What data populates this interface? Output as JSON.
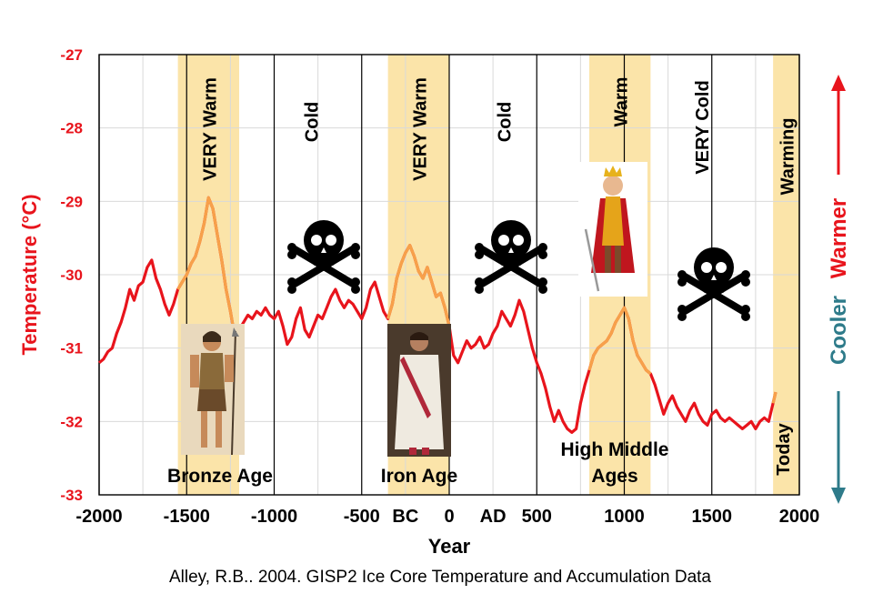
{
  "chart_data": {
    "type": "line",
    "ylabel": "Temperature (°C)",
    "xlabel": "Year",
    "source": "Alley, R.B.. 2004. GISP2 Ice Core Temperature and Accumulation Data",
    "xlim": [
      -2000,
      2000
    ],
    "ylim": [
      -33,
      -27
    ],
    "grid": true,
    "y_ticks": [
      "-27",
      "-28",
      "-29",
      "-30",
      "-31",
      "-32",
      "-33"
    ],
    "x_ticks": [
      {
        "value": -2000,
        "label": "-2000"
      },
      {
        "value": -1500,
        "label": "-1500"
      },
      {
        "value": -1000,
        "label": "-1000"
      },
      {
        "value": -500,
        "label": "-500"
      },
      {
        "value": -250,
        "label": "BC"
      },
      {
        "value": 0,
        "label": "0"
      },
      {
        "value": 250,
        "label": "AD"
      },
      {
        "value": 500,
        "label": "500"
      },
      {
        "value": 1000,
        "label": "1000"
      },
      {
        "value": 1500,
        "label": "1500"
      },
      {
        "value": 2000,
        "label": "2000"
      }
    ],
    "right_axis": {
      "cooler_label": "Cooler",
      "warmer_label": "Warmer",
      "cooler_color": "#2e7b8a",
      "warmer_color": "#e8141c"
    },
    "bands": [
      {
        "start": -1550,
        "end": -1200,
        "label": "VERY Warm"
      },
      {
        "start": -350,
        "end": 0,
        "label": "VERY Warm"
      },
      {
        "start": 800,
        "end": 1150,
        "label": "Warm"
      },
      {
        "start": 1850,
        "end": 2000,
        "label": "Warming"
      }
    ],
    "period_labels": [
      {
        "x": -750,
        "label": "Cold"
      },
      {
        "x": 350,
        "label": "Cold"
      },
      {
        "x": 1450,
        "label": "VERY Cold"
      },
      {
        "x": 1900,
        "label": "Today"
      }
    ],
    "era_labels": [
      "Bronze Age",
      "Iron Age",
      "High Middle",
      "Ages"
    ],
    "series": [
      {
        "color": "#e8141c",
        "highlight_color": "#f7a14a",
        "x": [
          -2000,
          -1975,
          -1950,
          -1925,
          -1900,
          -1875,
          -1850,
          -1825,
          -1800,
          -1775,
          -1750,
          -1725,
          -1700,
          -1675,
          -1650,
          -1625,
          -1600,
          -1575,
          -1550,
          -1525,
          -1500,
          -1475,
          -1450,
          -1425,
          -1400,
          -1375,
          -1350,
          -1325,
          -1300,
          -1275,
          -1250,
          -1225,
          -1200,
          -1175,
          -1150,
          -1125,
          -1100,
          -1075,
          -1050,
          -1025,
          -1000,
          -975,
          -950,
          -925,
          -900,
          -875,
          -850,
          -825,
          -800,
          -775,
          -750,
          -725,
          -700,
          -675,
          -650,
          -625,
          -600,
          -575,
          -550,
          -525,
          -500,
          -475,
          -450,
          -425,
          -400,
          -375,
          -350,
          -325,
          -300,
          -275,
          -250,
          -225,
          -200,
          -175,
          -150,
          -125,
          -100,
          -75,
          -50,
          -25,
          0,
          25,
          50,
          75,
          100,
          125,
          150,
          175,
          200,
          225,
          250,
          275,
          300,
          325,
          350,
          375,
          400,
          425,
          450,
          475,
          500,
          525,
          550,
          575,
          600,
          625,
          650,
          675,
          700,
          725,
          750,
          775,
          800,
          825,
          850,
          875,
          900,
          925,
          950,
          975,
          1000,
          1025,
          1050,
          1075,
          1100,
          1125,
          1150,
          1175,
          1200,
          1225,
          1250,
          1275,
          1300,
          1325,
          1350,
          1375,
          1400,
          1425,
          1450,
          1475,
          1500,
          1525,
          1550,
          1575,
          1600,
          1625,
          1650,
          1675,
          1700,
          1725,
          1750,
          1775,
          1800,
          1825,
          1850,
          1865
        ],
        "y": [
          -31.2,
          -31.15,
          -31.05,
          -31.0,
          -30.8,
          -30.65,
          -30.45,
          -30.2,
          -30.35,
          -30.15,
          -30.1,
          -29.9,
          -29.8,
          -30.05,
          -30.2,
          -30.4,
          -30.55,
          -30.4,
          -30.2,
          -30.1,
          -30.0,
          -29.85,
          -29.75,
          -29.55,
          -29.3,
          -28.95,
          -29.1,
          -29.45,
          -29.8,
          -30.2,
          -30.5,
          -30.85,
          -30.75,
          -30.65,
          -30.55,
          -30.6,
          -30.5,
          -30.55,
          -30.45,
          -30.55,
          -30.6,
          -30.5,
          -30.7,
          -30.95,
          -30.85,
          -30.6,
          -30.45,
          -30.75,
          -30.85,
          -30.7,
          -30.55,
          -30.6,
          -30.45,
          -30.3,
          -30.2,
          -30.35,
          -30.45,
          -30.35,
          -30.4,
          -30.5,
          -30.6,
          -30.45,
          -30.2,
          -30.1,
          -30.3,
          -30.5,
          -30.6,
          -30.4,
          -30.05,
          -29.85,
          -29.7,
          -29.6,
          -29.75,
          -29.95,
          -30.05,
          -29.9,
          -30.1,
          -30.3,
          -30.25,
          -30.45,
          -30.7,
          -31.1,
          -31.2,
          -31.05,
          -30.9,
          -31.0,
          -30.95,
          -30.85,
          -31.0,
          -30.95,
          -30.8,
          -30.7,
          -30.5,
          -30.6,
          -30.7,
          -30.55,
          -30.35,
          -30.5,
          -30.75,
          -31.0,
          -31.2,
          -31.35,
          -31.55,
          -31.8,
          -32.0,
          -31.85,
          -32.0,
          -32.1,
          -32.15,
          -32.1,
          -31.75,
          -31.5,
          -31.3,
          -31.1,
          -31.0,
          -30.95,
          -30.9,
          -30.8,
          -30.65,
          -30.55,
          -30.45,
          -30.6,
          -30.9,
          -31.1,
          -31.2,
          -31.3,
          -31.35,
          -31.5,
          -31.7,
          -31.9,
          -31.75,
          -31.65,
          -31.8,
          -31.9,
          -32.0,
          -31.85,
          -31.75,
          -31.9,
          -32.0,
          -32.05,
          -31.9,
          -31.85,
          -31.95,
          -32.0,
          -31.95,
          -32.0,
          -32.05,
          -32.1,
          -32.05,
          -32.0,
          -32.1,
          -32.0,
          -31.95,
          -32.0,
          -31.75,
          -31.6
        ]
      }
    ]
  },
  "illustrations": [
    {
      "kind": "bronze-age-warrior"
    },
    {
      "kind": "roman-senator"
    },
    {
      "kind": "medieval-king"
    },
    {
      "kind": "skull-crossbones"
    },
    {
      "kind": "skull-crossbones"
    },
    {
      "kind": "skull-crossbones"
    }
  ]
}
